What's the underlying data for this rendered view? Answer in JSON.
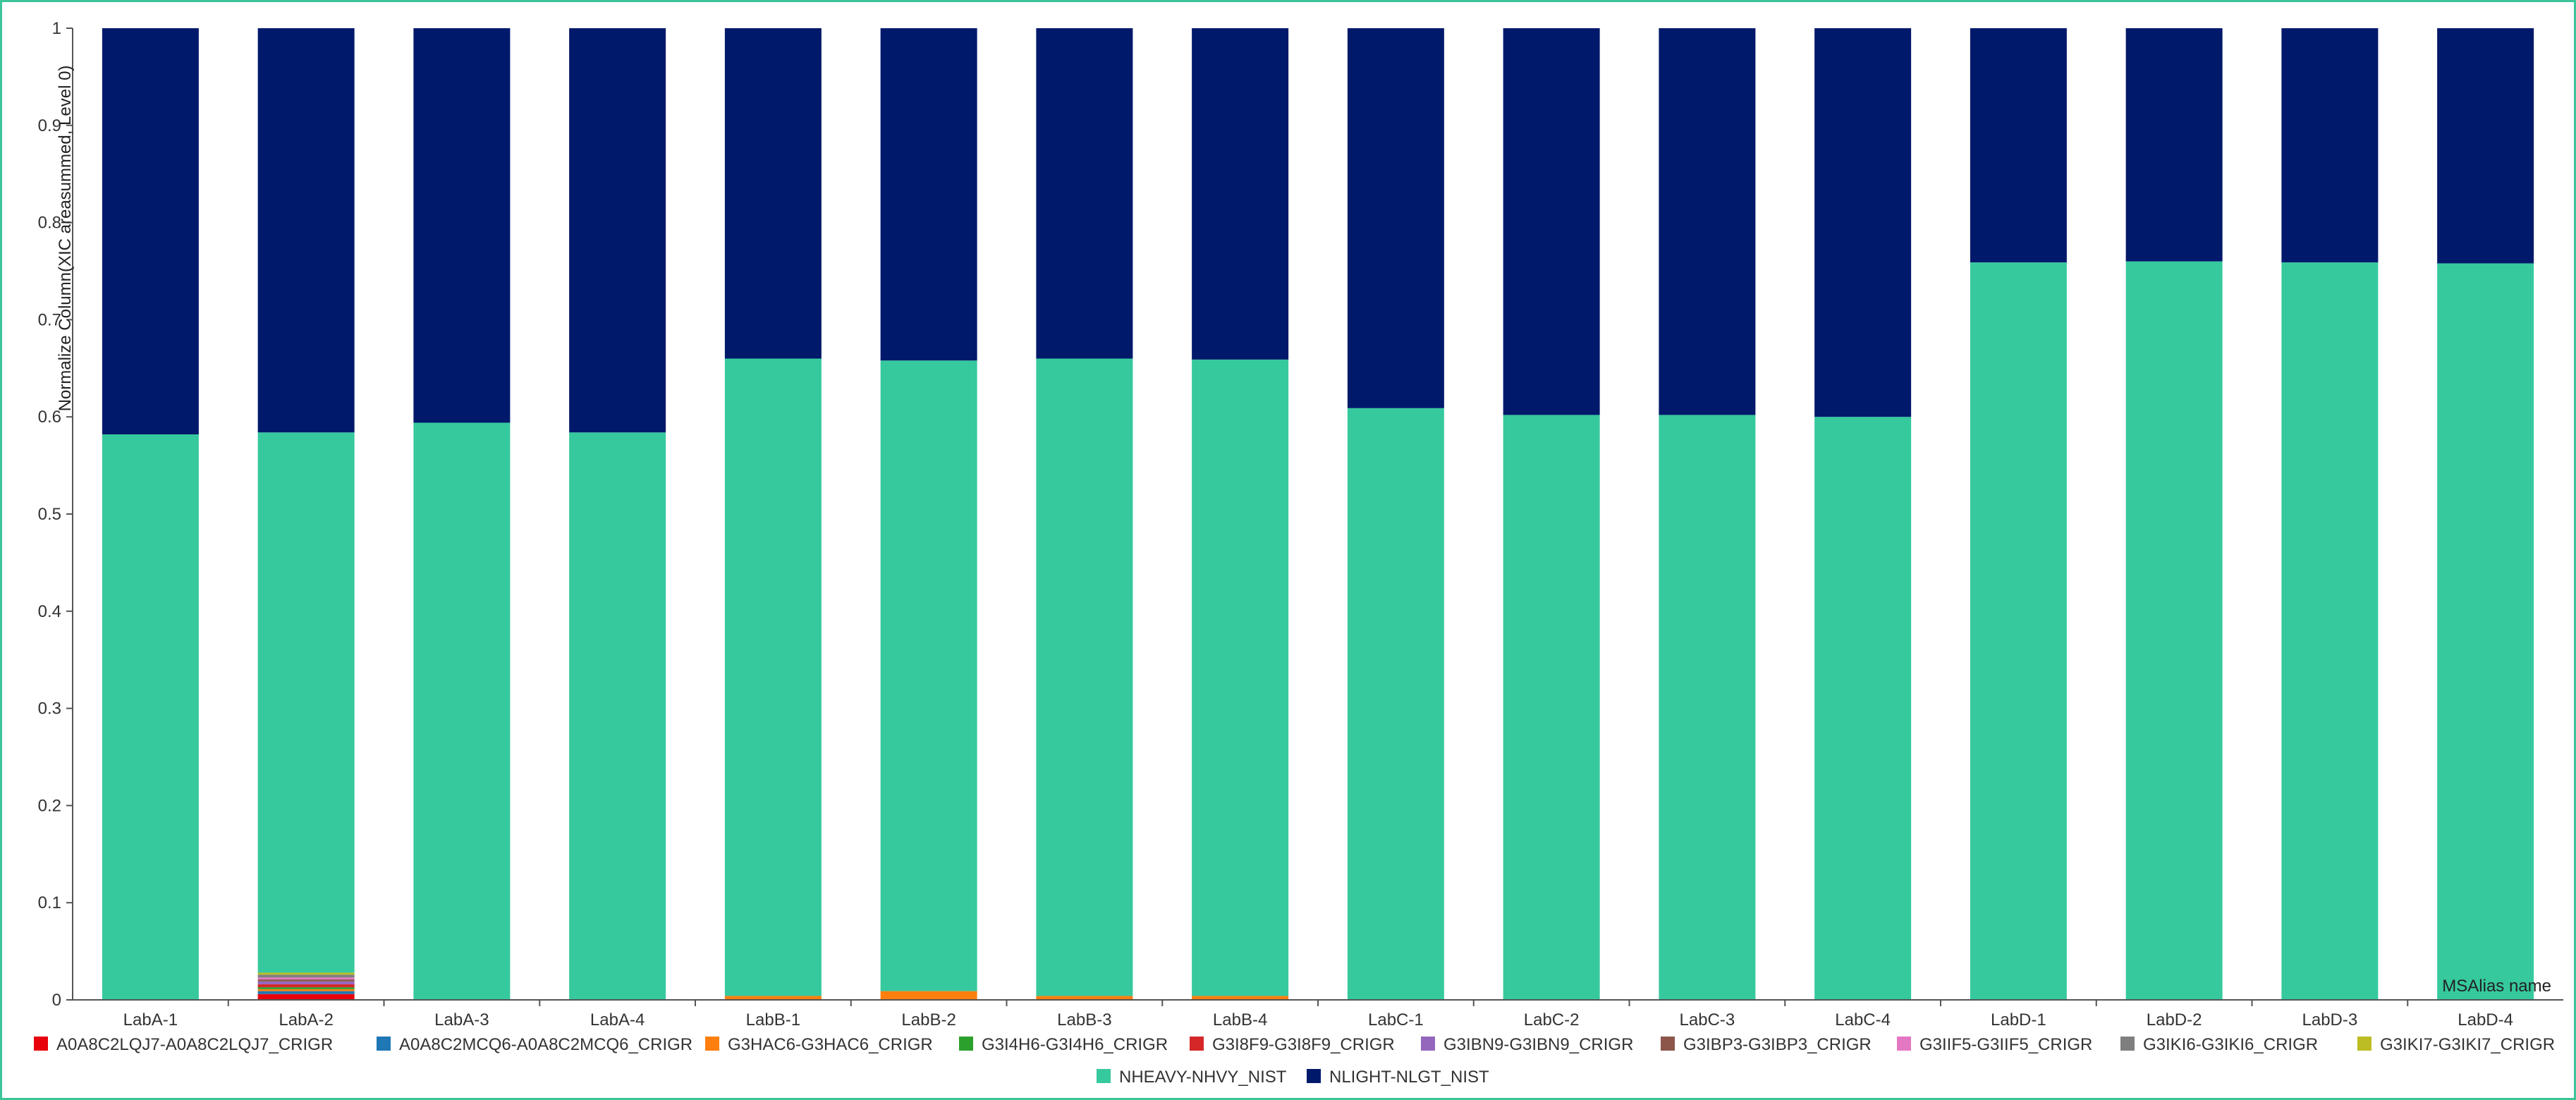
{
  "chart_data": {
    "type": "bar",
    "stacked": true,
    "title": "",
    "ylabel": "Normalize Column(XIC areasummed, Level 0)",
    "xlabel": "MSAlias name",
    "ylim": [
      0,
      1
    ],
    "yticks": [
      "0",
      "0.1",
      "0.2",
      "0.3",
      "0.4",
      "0.5",
      "0.6",
      "0.7",
      "0.8",
      "0.9",
      "1"
    ],
    "legend_position": "bottom",
    "grid": false,
    "categories": [
      "LabA-1",
      "LabA-2",
      "LabA-3",
      "LabA-4",
      "LabB-1",
      "LabB-2",
      "LabB-3",
      "LabB-4",
      "LabC-1",
      "LabC-2",
      "LabC-3",
      "LabC-4",
      "LabD-1",
      "LabD-2",
      "LabD-3",
      "LabD-4"
    ],
    "series": [
      {
        "name": "A0A8C2LQJ7-A0A8C2LQJ7_CRIGR",
        "color": "#e8000b",
        "values": [
          0,
          0.006,
          0,
          0,
          0,
          0,
          0,
          0,
          0,
          0,
          0,
          0,
          0,
          0,
          0,
          0
        ]
      },
      {
        "name": "A0A8C2MCQ6-A0A8C2MCQ6_CRIGR",
        "color": "#1f77b4",
        "values": [
          0,
          0.003,
          0,
          0,
          0,
          0,
          0,
          0,
          0,
          0,
          0,
          0,
          0,
          0,
          0,
          0
        ]
      },
      {
        "name": "G3HAC6-G3HAC6_CRIGR",
        "color": "#ff7f0e",
        "values": [
          0,
          0.002,
          0,
          0,
          0.004,
          0.009,
          0.004,
          0.004,
          0,
          0,
          0,
          0,
          0,
          0,
          0,
          0
        ]
      },
      {
        "name": "G3I4H6-G3I4H6_CRIGR",
        "color": "#2ca02c",
        "values": [
          0,
          0.002,
          0,
          0,
          0,
          0,
          0,
          0,
          0,
          0,
          0,
          0,
          0,
          0,
          0,
          0
        ]
      },
      {
        "name": "G3I8F9-G3I8F9_CRIGR",
        "color": "#d62728",
        "values": [
          0,
          0.003,
          0,
          0,
          0,
          0,
          0,
          0,
          0,
          0,
          0,
          0,
          0,
          0,
          0,
          0
        ]
      },
      {
        "name": "G3IBN9-G3IBN9_CRIGR",
        "color": "#9467bd",
        "values": [
          0,
          0.003,
          0,
          0,
          0,
          0,
          0,
          0,
          0,
          0,
          0,
          0,
          0,
          0,
          0,
          0
        ]
      },
      {
        "name": "G3IBP3-G3IBP3_CRIGR",
        "color": "#8c564b",
        "values": [
          0,
          0.002,
          0,
          0,
          0,
          0,
          0,
          0,
          0,
          0,
          0,
          0,
          0,
          0,
          0,
          0
        ]
      },
      {
        "name": "G3IIF5-G3IIF5_CRIGR",
        "color": "#e377c2",
        "values": [
          0,
          0.002,
          0,
          0,
          0,
          0,
          0,
          0,
          0,
          0,
          0,
          0,
          0,
          0,
          0,
          0
        ]
      },
      {
        "name": "G3IKI6-G3IKI6_CRIGR",
        "color": "#7f7f7f",
        "values": [
          0,
          0.003,
          0,
          0,
          0,
          0,
          0,
          0,
          0,
          0,
          0,
          0,
          0,
          0,
          0,
          0
        ]
      },
      {
        "name": "G3IKI7-G3IKI7_CRIGR",
        "color": "#bcbd22",
        "values": [
          0,
          0.002,
          0,
          0,
          0,
          0,
          0,
          0,
          0,
          0,
          0,
          0,
          0,
          0,
          0,
          0
        ]
      },
      {
        "name": "NHEAVY-NHVY_NIST",
        "color": "#36c99e",
        "values": [
          0.582,
          0.556,
          0.594,
          0.584,
          0.656,
          0.649,
          0.656,
          0.655,
          0.609,
          0.602,
          0.602,
          0.6,
          0.759,
          0.76,
          0.759,
          0.758
        ]
      },
      {
        "name": "NLIGHT-NLGT_NIST",
        "color": "#00196b",
        "values": [
          0.418,
          0.416,
          0.406,
          0.416,
          0.34,
          0.342,
          0.34,
          0.341,
          0.391,
          0.398,
          0.398,
          0.4,
          0.241,
          0.24,
          0.241,
          0.242
        ]
      }
    ]
  }
}
